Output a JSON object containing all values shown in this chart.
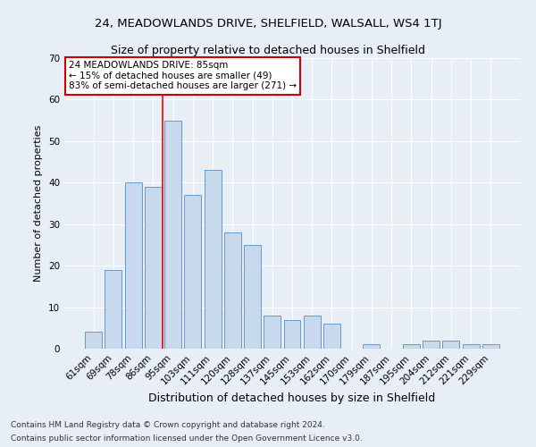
{
  "title1": "24, MEADOWLANDS DRIVE, SHELFIELD, WALSALL, WS4 1TJ",
  "title2": "Size of property relative to detached houses in Shelfield",
  "xlabel": "Distribution of detached houses by size in Shelfield",
  "ylabel": "Number of detached properties",
  "categories": [
    "61sqm",
    "69sqm",
    "78sqm",
    "86sqm",
    "95sqm",
    "103sqm",
    "111sqm",
    "120sqm",
    "128sqm",
    "137sqm",
    "145sqm",
    "153sqm",
    "162sqm",
    "170sqm",
    "179sqm",
    "187sqm",
    "195sqm",
    "204sqm",
    "212sqm",
    "221sqm",
    "229sqm"
  ],
  "values": [
    4,
    19,
    40,
    39,
    55,
    37,
    43,
    28,
    25,
    8,
    7,
    8,
    6,
    0,
    1,
    0,
    1,
    2,
    2,
    1,
    1
  ],
  "bar_color": "#c8d9ee",
  "bar_edge_color": "#6699cc",
  "red_line_index": 3.5,
  "annotation_text": "24 MEADOWLANDS DRIVE: 85sqm\n← 15% of detached houses are smaller (49)\n83% of semi-detached houses are larger (271) →",
  "annotation_box_color": "#ffffff",
  "annotation_box_edge": "#cc0000",
  "ylim": [
    0,
    70
  ],
  "yticks": [
    0,
    10,
    20,
    30,
    40,
    50,
    60,
    70
  ],
  "footer1": "Contains HM Land Registry data © Crown copyright and database right 2024.",
  "footer2": "Contains public sector information licensed under the Open Government Licence v3.0.",
  "bg_color": "#e8eef5",
  "grid_color": "#ffffff",
  "title1_fontsize": 9.5,
  "title2_fontsize": 9,
  "xlabel_fontsize": 9,
  "ylabel_fontsize": 8,
  "tick_fontsize": 7.5,
  "footer_fontsize": 6.5,
  "ann_fontsize": 7.5
}
